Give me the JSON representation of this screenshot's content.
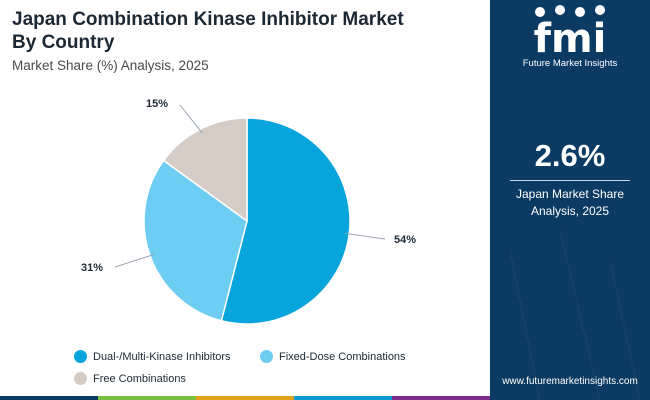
{
  "header": {
    "title": "Japan Combination Kinase Inhibitor Market\nBy Country",
    "subtitle": "Market Share (%) Analysis, 2025"
  },
  "chart_data": {
    "type": "pie",
    "categories": [
      "Dual-/Multi-Kinase Inhibitors",
      "Fixed-Dose Combinations",
      "Free Combinations"
    ],
    "values": [
      54,
      31,
      15
    ],
    "data_labels": [
      "54%",
      "31%",
      "15%"
    ],
    "colors": [
      "#08a4dc",
      "#6dcdf2",
      "#d6ccc6"
    ],
    "legend_position": "bottom"
  },
  "sidebar": {
    "logo_text": "fmi",
    "logo_subtitle": "Future Market Insights",
    "stat_value": "2.6%",
    "stat_label": "Japan Market Share\nAnalysis, 2025",
    "website": "www.futuremarketinsights.com",
    "background_color": "#0b3b63"
  },
  "bottom_bar_colors": [
    "#0b3b63",
    "#7dbd3d",
    "#e0a21b",
    "#0a9ad0",
    "#7b2d8b"
  ]
}
